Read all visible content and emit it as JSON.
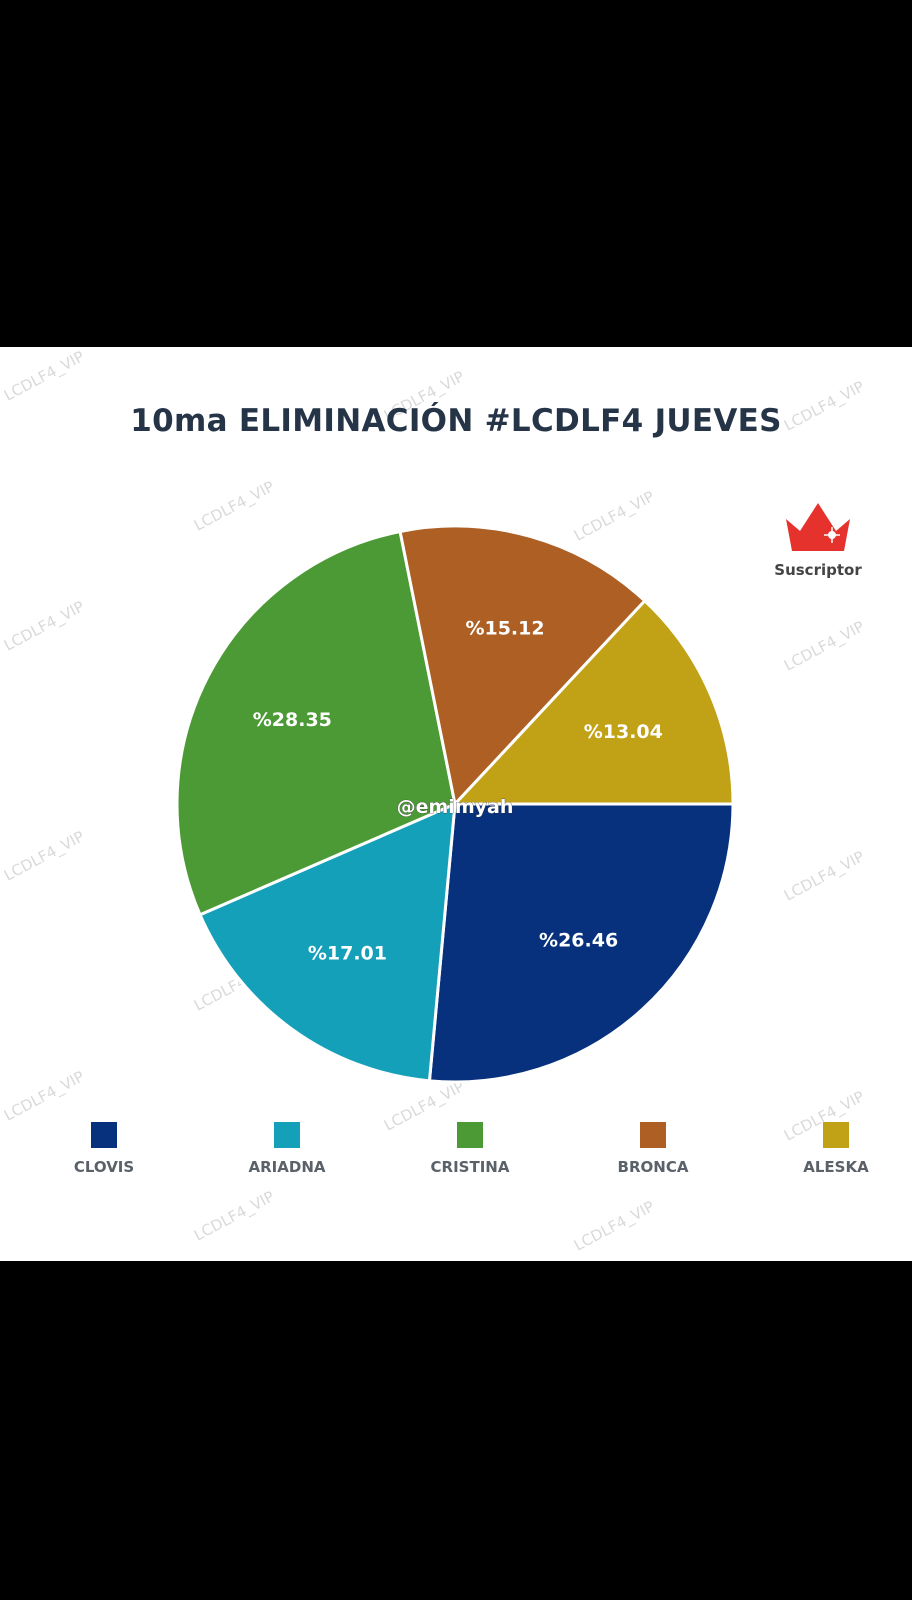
{
  "title": "10ma ELIMINACIÓN #LCDLF4 JUEVES",
  "watermark": "LCDLF4_VIP",
  "badge": {
    "icon": "crown-icon",
    "label": "Suscriptor",
    "color": "#e5322d"
  },
  "overlay_handle": "@emimyah",
  "chart_data": {
    "type": "pie",
    "title": "10ma ELIMINACIÓN #LCDLF4 JUEVES",
    "slices": [
      {
        "name": "CLOVIS",
        "value": 26.46,
        "label": "%26.46",
        "color": "#07317d"
      },
      {
        "name": "ARIADNA",
        "value": 17.01,
        "label": "%17.01",
        "color": "#15a0b9"
      },
      {
        "name": "CRISTINA",
        "value": 28.35,
        "label": "%28.35",
        "color": "#4c9a35"
      },
      {
        "name": "BRONCA",
        "value": 15.12,
        "label": "%15.12",
        "color": "#ad5f24"
      },
      {
        "name": "ALESKA",
        "value": 13.04,
        "label": "%13.04",
        "color": "#c1a115"
      }
    ],
    "legend_position": "bottom"
  }
}
